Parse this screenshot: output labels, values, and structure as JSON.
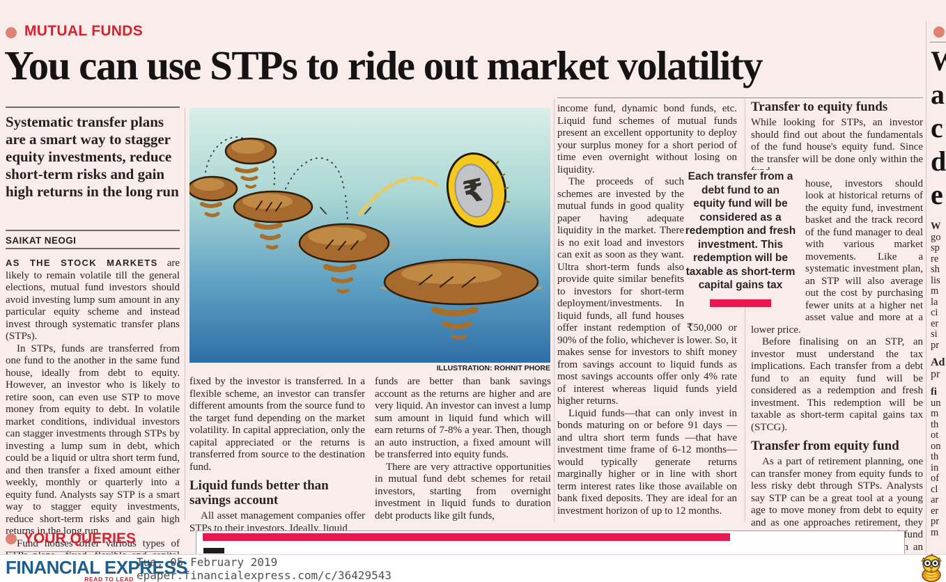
{
  "masthead": {
    "section_label": "MUTUAL FUNDS",
    "headline": "You can use STPs to ride out market volatility"
  },
  "colors": {
    "background": "#f9edeb",
    "accent_red": "#d2232f",
    "bullet_salmon": "#df8173",
    "quote_bar_red": "#e8184f",
    "logo_blue": "#1e5e8e",
    "illustration_water_top": "#d9efe8",
    "illustration_water_bottom": "#2e6ea8",
    "rock_brown": "#a76a2e",
    "coin_yellow": "#f4c81e"
  },
  "article": {
    "intro": "Systematic transfer plans are a smart way to stagger equity investments, reduce short-term risks and gain high returns in the long run",
    "byline": "SAIKAT NEOGI",
    "col1": {
      "p1_lead": "AS THE STOCK MARKETS",
      "p1_rest": " are likely to remain volatile till the general elections, mutual fund investors should avoid investing lump sum amount in any particular equity scheme and instead invest through systematic transfer plans (STPs).",
      "p2": "In STPs, funds are transferred from one fund to the another in the same fund house, ideally from debt to equity. However, an investor who is likely to retire soon, can even use STP to move money from equity to debt. In volatile market conditions, individual investors can stagger investments through STPs by investing a lump sum in debt, which could be a liquid or ultra short term fund, and then transfer a fixed amount either weekly, monthly or quarterly into a equity fund. Analysts say STP is a smart way to stagger equity investments, reduce short-term risks and gain high returns in the long run.",
      "p3": "Fund houses offer various types of STPs plans—fixed, flexible and capital appreciation. In a fixed scheme, a predefined amount"
    },
    "illustration": {
      "caption": "ILLUSTRATION: ROHNIT PHORE",
      "description": "stepping stones skipping across water with a rupee coin leaping off"
    },
    "col2": {
      "p1": "fixed by the investor is transferred. In a flexible scheme, an investor can transfer different amounts from the source fund to the target fund depending on the market volatility. In capital appreciation, only the capital appreciated or the returns is transferred from source to the destination fund.",
      "heading": "Liquid funds better than savings account",
      "p2": "All asset management companies offer STPs to their investors. Ideally, liquid"
    },
    "col3": {
      "p1": "funds are better than bank savings account as the returns are higher and are very liquid. An investor can invest a lump sum amount in liquid fund which will earn returns of 7-8% a year. Then, though an auto instruction, a fixed amount will be transferred into equity funds.",
      "p2": "There are very attractive opportunities in mutual fund debt schemes for retail investors, starting from overnight investment in liquid funds to duration debt products like gilt funds,"
    },
    "col4": {
      "p1": "income fund, dynamic bond funds, etc. Liquid fund schemes of mutual funds present an excellent opportunity to deploy your surplus money for a short period of time even overnight without losing on liquidity.",
      "p2": "The proceeds of such schemes are invested by the mutual funds in good quality paper having adequate liquidity in the market. There is no exit load and investors can exit as soon as they want. Ultra short-term funds also provide quite similar benefits to investors for short-term deployment/investments. In liquid funds, all fund houses offer instant redemption of ₹50,000 or 90% of the folio, whichever is lower. So, it makes sense for investors to shift money from savings account to liquid funds as most savings accounts offer only 4% rate of interest whereas liquid funds yield higher returns.",
      "p3": "Liquid funds—that can only invest in bonds maturing on or before 91 days — and ultra short term funds —that have investment time frame of 6-12 months—would typically generate returns marginally higher or in line with short term interest rates like those available on bank fixed deposits. They are ideal for an investment horizon of up to 12 months."
    },
    "pull_quote": {
      "text": "Each transfer from a debt fund to an equity fund will be considered as a redemption and fresh investment. This redemption will be taxable as short-term capital gains tax"
    },
    "col5": {
      "heading1": "Transfer to equity funds",
      "p1a": "While looking for STPs, an investor should find out about the fundamentals of the fund house's equity fund. Since the transfer will be done only within the fund",
      "p1b": "house, investors should look at historical returns of the equity fund, investment basket and the track record of the fund manager to deal with various market movements. Like a systematic investment plan, an STP will also average out the cost by purchasing fewer units at a higher net asset value and more at a lower price.",
      "p2": "Before finalising on an STP, an investor must understand the tax implications. Each transfer from a debt fund to an equity fund will be considered as a redemption and fresh investment. This redemption will be taxable as short-term capital gains tax (STCG).",
      "heading2": "Transfer from equity fund",
      "p3": "As a part of retirement planning, one can transfer money from equity funds to less risky debt through STPs. Analysts say STP can be a great tool at a young age to move money from debt to equity and as one approaches retirement, they initiate an STP to prevent loss of fund value due to volatile markets. Such an approach will help an individual to move his accumulated corpus to a safer haven like debt."
    }
  },
  "queries": {
    "section_label": "YOUR QUERIES"
  },
  "sliver": {
    "headline_fragments": [
      "W",
      "a",
      "c",
      "d",
      "e"
    ],
    "fragments1": [
      "W",
      "go",
      "sp",
      "re",
      "sh",
      "lis",
      "m",
      "la",
      "ci",
      "er",
      "si",
      "pr"
    ],
    "fragments2": [
      "Ad",
      "pr"
    ],
    "fragments3": [
      "fi",
      "un",
      "m",
      "th",
      "ot",
      "on",
      "th",
      "in",
      "of",
      "cl",
      "ar",
      "er",
      "pr",
      "m"
    ]
  },
  "footer": {
    "logo": "FINANCIAL EXPRESS",
    "tagline": "READ TO LEAD",
    "date": "Tue, 05 February 2019",
    "url": "epaper.financialexpress.com/c/36429543"
  }
}
